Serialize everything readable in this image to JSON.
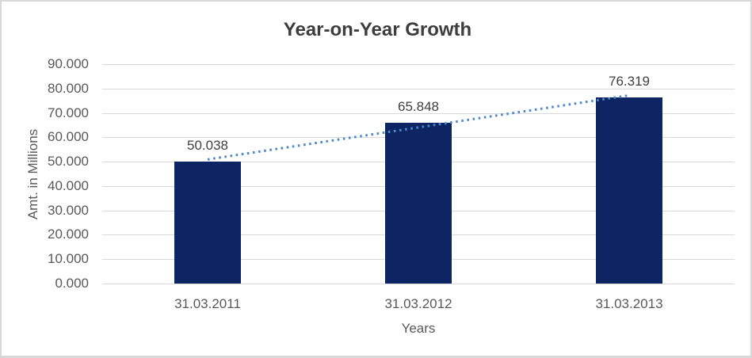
{
  "window": {
    "background": "#ffffff",
    "border_color": "#d8d8d8"
  },
  "chart_data": {
    "type": "bar",
    "title": "Year-on-Year Growth",
    "xlabel": "Years",
    "ylabel": "Amt. in Millions",
    "categories": [
      "31.03.2011",
      "31.03.2012",
      "31.03.2013"
    ],
    "values": [
      50.038,
      65.848,
      76.319
    ],
    "value_labels": [
      "50.038",
      "65.848",
      "76.319"
    ],
    "y_ticks": [
      "0.000",
      "10.000",
      "20.000",
      "30.000",
      "40.000",
      "50.000",
      "60.000",
      "70.000",
      "80.000",
      "90.000"
    ],
    "ylim": [
      0,
      90
    ],
    "y_tick_step": 10,
    "grid": true,
    "legend": false,
    "trendline": {
      "type": "linear",
      "style": "dotted",
      "color": "#4e87ca"
    },
    "colors": {
      "bar": "#0d2663",
      "gridline": "#d9d9d9",
      "tick_label": "#595959",
      "data_label": "#404040",
      "title": "#3d3d3d",
      "axis_title": "#595959"
    }
  }
}
